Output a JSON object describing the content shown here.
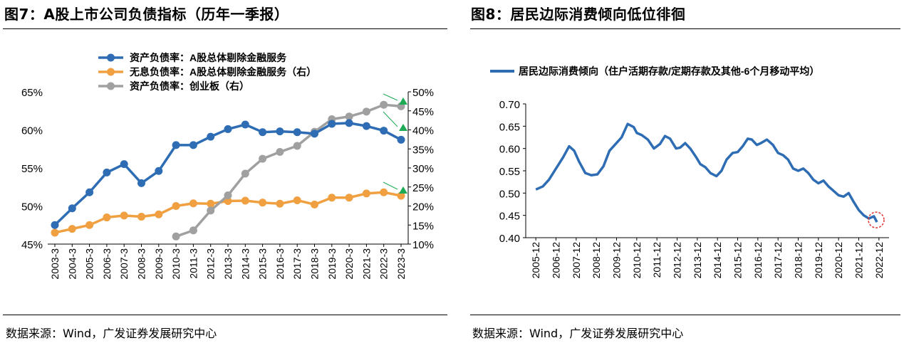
{
  "left": {
    "title": "图7：A股上市公司负债指标（历年一季报）",
    "source": "数据来源：Wind，广发证券发展研究中心"
  },
  "right": {
    "title": "图8：居民边际消费倾向低位徘徊",
    "source": "数据来源：Wind，广发证券发展研究中心"
  },
  "chart_data": [
    {
      "type": "line",
      "title": "",
      "x": [
        "2003-3",
        "2004-3",
        "2005-3",
        "2006-3",
        "2007-3",
        "2008-3",
        "2009-3",
        "2010-3",
        "2011-3",
        "2012-3",
        "2013-3",
        "2014-3",
        "2015-3",
        "2016-3",
        "2017-3",
        "2018-3",
        "2019-3",
        "2020-3",
        "2021-3",
        "2022-3",
        "2023-3"
      ],
      "left_axis": {
        "ylim": [
          45,
          65
        ],
        "ticks": [
          45,
          50,
          55,
          60,
          65
        ],
        "tick_labels": [
          "45%",
          "50%",
          "55%",
          "60%",
          "65%"
        ]
      },
      "right_axis": {
        "ylim": [
          10,
          50
        ],
        "ticks": [
          10,
          15,
          20,
          25,
          30,
          35,
          40,
          45,
          50
        ],
        "tick_labels": [
          "10%",
          "15%",
          "20%",
          "25%",
          "30%",
          "35%",
          "40%",
          "45%",
          "50%"
        ]
      },
      "series": [
        {
          "name": "资产负债率：A股总体剔除金融服务",
          "axis": "left",
          "color": "#2E6DB4",
          "values": [
            47.5,
            49.7,
            51.8,
            54.4,
            55.5,
            53.0,
            54.6,
            58.0,
            58.0,
            59.1,
            60.1,
            60.7,
            59.7,
            59.8,
            59.7,
            59.5,
            60.8,
            60.9,
            60.5,
            59.9,
            58.7
          ]
        },
        {
          "name": "无息负债率：A股总体剔除金融服务（右）",
          "axis": "right",
          "color": "#F0A040",
          "values": [
            13.0,
            14.0,
            15.0,
            17.0,
            17.5,
            17.2,
            17.8,
            20.0,
            20.7,
            20.6,
            21.3,
            21.4,
            20.9,
            20.6,
            21.5,
            20.4,
            22.2,
            22.2,
            23.3,
            23.6,
            22.7
          ]
        },
        {
          "name": "资产负债率：创业板（右）",
          "axis": "right",
          "color": "#A0A0A0",
          "values": [
            null,
            null,
            null,
            null,
            null,
            null,
            null,
            12.0,
            13.6,
            18.8,
            22.8,
            28.5,
            32.4,
            34.2,
            35.8,
            39.5,
            42.8,
            43.5,
            44.8,
            46.6,
            46.2
          ]
        }
      ],
      "annotations": [
        "green-up-arrow",
        "green-up-arrow",
        "green-up-arrow"
      ],
      "legend": "top-left"
    },
    {
      "type": "line",
      "title": "",
      "x_tick_labels": [
        "2005-12",
        "2006-12",
        "2007-12",
        "2008-12",
        "2009-12",
        "2010-12",
        "2011-12",
        "2012-12",
        "2013-12",
        "2014-12",
        "2015-12",
        "2016-12",
        "2017-12",
        "2018-12",
        "2019-12",
        "2020-12",
        "2021-12",
        "2022-12"
      ],
      "ylim": [
        0.4,
        0.7
      ],
      "ticks": [
        0.4,
        0.45,
        0.5,
        0.55,
        0.6,
        0.65,
        0.7
      ],
      "tick_labels": [
        "0.40",
        "0.45",
        "0.50",
        "0.55",
        "0.60",
        "0.65",
        "0.70"
      ],
      "series": [
        {
          "name": "居民边际消费倾向（住户活期存款/定期存款及其他-6个月移动平均）",
          "color": "#2E6DB4",
          "x": [
            2005.95,
            2006.3,
            2006.6,
            2006.95,
            2007.3,
            2007.6,
            2007.85,
            2008.1,
            2008.4,
            2008.7,
            2009.0,
            2009.3,
            2009.6,
            2009.9,
            2010.2,
            2010.5,
            2010.8,
            2010.95,
            2011.2,
            2011.5,
            2011.8,
            2012.1,
            2012.35,
            2012.6,
            2012.9,
            2013.1,
            2013.35,
            2013.6,
            2013.9,
            2014.1,
            2014.35,
            2014.6,
            2014.9,
            2015.15,
            2015.4,
            2015.7,
            2015.95,
            2016.2,
            2016.45,
            2016.65,
            2016.9,
            2017.1,
            2017.4,
            2017.7,
            2017.95,
            2018.2,
            2018.45,
            2018.7,
            2018.95,
            2019.2,
            2019.45,
            2019.7,
            2019.95,
            2020.2,
            2020.45,
            2020.7,
            2020.95,
            2021.2,
            2021.45,
            2021.7,
            2021.95,
            2022.2,
            2022.45,
            2022.7,
            2022.85
          ],
          "values": [
            0.508,
            0.515,
            0.53,
            0.555,
            0.58,
            0.605,
            0.595,
            0.57,
            0.545,
            0.54,
            0.542,
            0.56,
            0.595,
            0.61,
            0.625,
            0.655,
            0.648,
            0.635,
            0.63,
            0.62,
            0.6,
            0.61,
            0.628,
            0.622,
            0.6,
            0.602,
            0.612,
            0.6,
            0.58,
            0.565,
            0.558,
            0.545,
            0.538,
            0.55,
            0.575,
            0.59,
            0.592,
            0.605,
            0.622,
            0.62,
            0.608,
            0.612,
            0.62,
            0.608,
            0.59,
            0.585,
            0.575,
            0.555,
            0.55,
            0.555,
            0.545,
            0.53,
            0.522,
            0.528,
            0.515,
            0.505,
            0.495,
            0.492,
            0.5,
            0.48,
            0.462,
            0.45,
            0.443,
            0.448,
            0.435
          ]
        }
      ],
      "annotations": [
        "red-dashed-circle"
      ],
      "legend": "top-left"
    }
  ]
}
